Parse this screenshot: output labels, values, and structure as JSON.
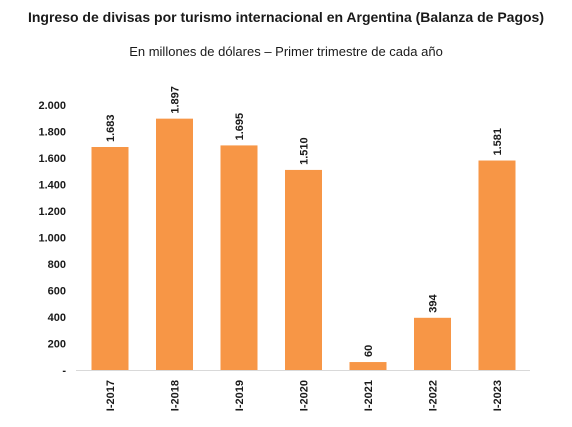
{
  "chart_data": {
    "type": "bar",
    "title": "Ingreso de divisas por turismo internacional en Argentina (Balanza de Pagos)",
    "subtitle": "En millones de dólares – Primer trimestre de cada año",
    "xlabel": "",
    "ylabel": "",
    "categories": [
      "I-2017",
      "I-2018",
      "I-2019",
      "I-2020",
      "I-2021",
      "I-2022",
      "I-2023"
    ],
    "values": [
      1683,
      1897,
      1695,
      1510,
      60,
      394,
      1581
    ],
    "data_labels": [
      "1.683",
      "1.897",
      "1.695",
      "1.510",
      "60",
      "394",
      "1.581"
    ],
    "y_ticks": [
      0,
      200,
      400,
      600,
      800,
      1000,
      1200,
      1400,
      1600,
      1800,
      2000
    ],
    "y_tick_labels": [
      "-",
      "200",
      "400",
      "600",
      "800",
      "1.000",
      "1.200",
      "1.400",
      "1.600",
      "1.800",
      "2.000"
    ],
    "ylim": [
      0,
      2000
    ],
    "grid": false,
    "legend": "none",
    "bar_color": "#F79646"
  }
}
